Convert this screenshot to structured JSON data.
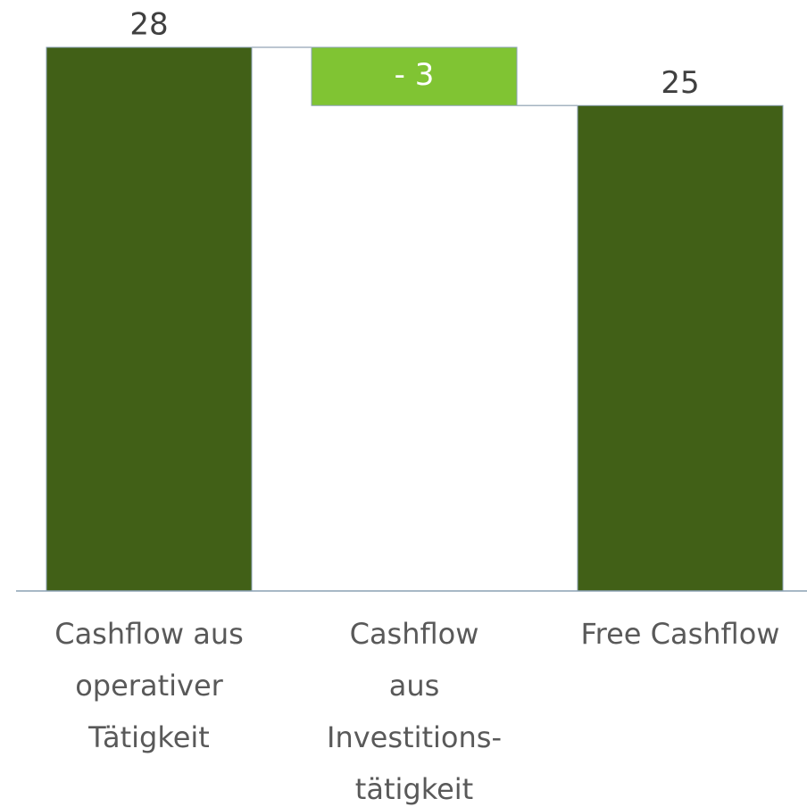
{
  "chart_data": {
    "type": "waterfall",
    "categories": [
      "Cashflow aus\noperativer\nTätigkeit",
      "Cashflow\naus\nInvestitions-\ntätigkeit",
      "Free Cashflow"
    ],
    "values": [
      28,
      -3,
      25
    ],
    "value_labels": [
      "28",
      "- 3",
      "25"
    ],
    "is_total": [
      false,
      false,
      true
    ],
    "colors": [
      "#416017",
      "#80c433",
      "#416017"
    ],
    "ylim": [
      0,
      28
    ]
  }
}
